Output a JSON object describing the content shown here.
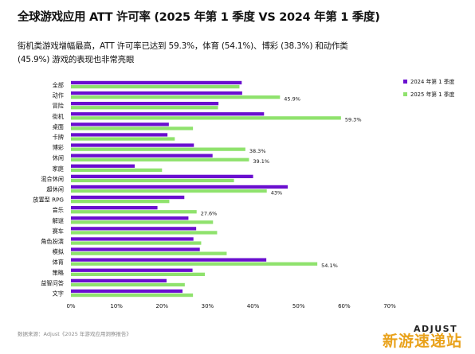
{
  "header": {
    "title": "全球游戏应用 ATT 许可率 (2025 年第 1 季度 VS 2024 年第 1 季度)",
    "subtitle": "街机类游戏增幅最高，ATT 许可率已达到 59.3%，体育 (54.1%)、博彩 (38.3%) 和动作类 (45.9%) 游戏的表现也非常亮眼"
  },
  "footer": {
    "source": "数据来源：Adjust《2025 年游戏应用洞察报告》",
    "logo": "ADJUST",
    "watermark": "新游速递站"
  },
  "colors": {
    "series_2024": "#6a0fcf",
    "series_2025": "#8fe26d"
  },
  "chart_data": {
    "type": "bar",
    "orientation": "horizontal",
    "categories": [
      "全部",
      "动作",
      "冒险",
      "街机",
      "桌面",
      "卡牌",
      "博彩",
      "休闲",
      "家庭",
      "混合休闲",
      "超休闲",
      "放置型 RPG",
      "音乐",
      "解谜",
      "赛车",
      "角色扮演",
      "模拟",
      "体育",
      "策略",
      "益智问答",
      "文字"
    ],
    "series": [
      {
        "name": "2024 年第 1 季度",
        "values": [
          37.5,
          37.6,
          32.4,
          42.4,
          21.5,
          21.2,
          27.0,
          31.1,
          14.0,
          40.0,
          47.6,
          24.9,
          19.0,
          25.8,
          27.5,
          26.9,
          28.3,
          42.9,
          26.7,
          21.0,
          24.5
        ]
      },
      {
        "name": "2025 年第 1 季度",
        "values": [
          37.0,
          45.9,
          32.3,
          59.3,
          26.8,
          22.8,
          38.3,
          39.1,
          20.0,
          35.8,
          43.0,
          21.6,
          27.6,
          31.2,
          32.1,
          28.6,
          34.2,
          54.1,
          29.4,
          25.0,
          26.8
        ]
      }
    ],
    "data_labels": [
      {
        "category": "动作",
        "series": 1,
        "text": "45.9%"
      },
      {
        "category": "街机",
        "series": 1,
        "text": "59.3%"
      },
      {
        "category": "博彩",
        "series": 1,
        "text": "38.3%"
      },
      {
        "category": "休闲",
        "series": 1,
        "text": "39.1%"
      },
      {
        "category": "超休闲",
        "series": 1,
        "text": "43%"
      },
      {
        "category": "音乐",
        "series": 1,
        "text": "27.6%"
      },
      {
        "category": "体育",
        "series": 1,
        "text": "54.1%"
      }
    ],
    "xlim": [
      0,
      70
    ],
    "xticks": [
      "0%",
      "10%",
      "20%",
      "30%",
      "40%",
      "50%",
      "60%",
      "70%"
    ],
    "xtick_values": [
      0,
      10,
      20,
      30,
      40,
      50,
      60,
      70
    ],
    "grid": false,
    "legend_position": "top-right"
  }
}
